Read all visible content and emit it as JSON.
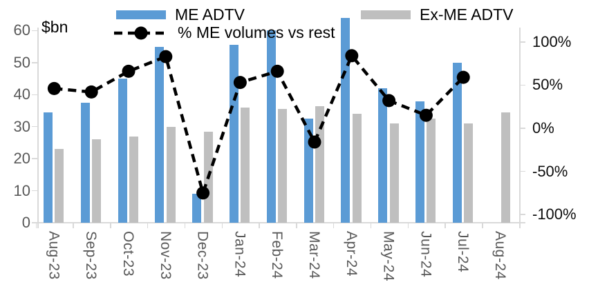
{
  "chart_data": {
    "type": "combo-bar-line",
    "title": "",
    "left_axis": {
      "label": "$bn",
      "ticks": [
        60,
        50,
        40,
        30,
        20,
        10,
        0
      ],
      "range": [
        0,
        60
      ]
    },
    "right_axis": {
      "ticks": [
        "100%",
        "50%",
        "0%",
        "-50%",
        "-100%"
      ],
      "tick_values": [
        100,
        50,
        0,
        -50,
        -100
      ],
      "range": [
        -100,
        100
      ]
    },
    "categories": [
      "Aug-23",
      "Sep-23",
      "Oct-23",
      "Nov-23",
      "Dec-23",
      "Jan-24",
      "Feb-24",
      "Mar-24",
      "Apr-24",
      "May-24",
      "Jun-24",
      "Jul-24",
      "Aug-24"
    ],
    "series": [
      {
        "name": "ME ADTV",
        "type": "bar",
        "color": "#5B9BD5",
        "values": [
          34.5,
          37.5,
          45,
          55,
          9,
          55.5,
          60,
          32.5,
          64,
          42,
          38,
          50,
          null
        ]
      },
      {
        "name": "Ex-ME ADTV",
        "type": "bar",
        "color": "#BFBFBF",
        "values": [
          23,
          26,
          27,
          30,
          28.5,
          36,
          35.5,
          36.5,
          34,
          31,
          32.5,
          31,
          34.5
        ]
      },
      {
        "name": "% ME volumes vs rest",
        "type": "line",
        "axis": "right",
        "color": "#000000",
        "marker": "circle",
        "dashed": true,
        "values_pct": [
          46,
          42,
          66,
          83,
          -75,
          53,
          66,
          -16,
          84,
          32,
          15,
          59,
          null
        ]
      }
    ],
    "legend": [
      {
        "label": "ME ADTV",
        "swatch": "bar",
        "color": "#5B9BD5"
      },
      {
        "label": "Ex-ME ADTV",
        "swatch": "bar",
        "color": "#BFBFBF"
      },
      {
        "label": "% ME volumes vs rest",
        "swatch": "dashed-line-marker",
        "color": "#000000"
      }
    ],
    "grid": false,
    "legend_position": "top"
  }
}
